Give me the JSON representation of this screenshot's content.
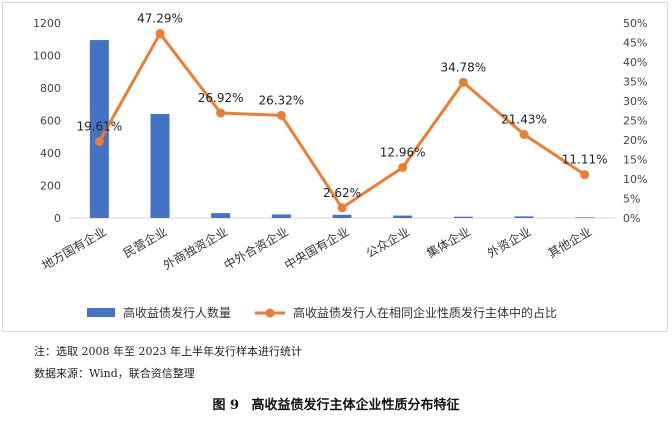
{
  "chart_data": {
    "type": "bar+line",
    "categories": [
      "地方国有企业",
      "民营企业",
      "外商独资企业",
      "中外合资企业",
      "中央国有企业",
      "公众企业",
      "集体企业",
      "外资企业",
      "其他企业"
    ],
    "series": [
      {
        "name": "高收益债发行人数量",
        "type": "bar",
        "axis": "left",
        "color": "#4472c4",
        "values": [
          1095,
          640,
          30,
          22,
          20,
          15,
          8,
          10,
          4
        ]
      },
      {
        "name": "高收益债发行人在相同企业性质发行主体中的占比",
        "type": "line",
        "axis": "right",
        "color": "#ed7d31",
        "values": [
          19.61,
          47.29,
          26.92,
          26.32,
          2.62,
          12.96,
          34.78,
          21.43,
          11.11
        ],
        "labels": [
          "19.61%",
          "47.29%",
          "26.92%",
          "26.32%",
          "2.62%",
          "12.96%",
          "34.78%",
          "21.43%",
          "11.11%"
        ]
      }
    ],
    "y_left": {
      "min": 0,
      "max": 1200,
      "step": 200,
      "ticks": [
        "0",
        "200",
        "400",
        "600",
        "800",
        "1000",
        "1200"
      ]
    },
    "y_right": {
      "min": 0,
      "max": 50,
      "step": 5,
      "ticks": [
        "0%",
        "5%",
        "10%",
        "15%",
        "20%",
        "25%",
        "30%",
        "35%",
        "40%",
        "45%",
        "50%"
      ]
    },
    "grid": false,
    "legend": "bottom"
  },
  "notes": {
    "line1": "注：选取 2008 年至 2023 年上半年发行样本进行统计",
    "line2": "数据来源：Wind，联合资信整理"
  },
  "caption": {
    "number": "图 9",
    "title": "高收益债发行主体企业性质分布特征"
  }
}
